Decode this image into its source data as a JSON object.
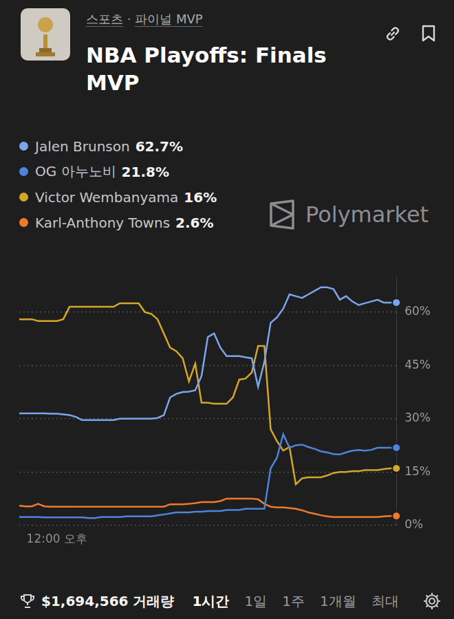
{
  "header": {
    "category": "스포츠",
    "separator": "·",
    "subcategory": "파이널 MVP",
    "title": "NBA Playoffs: Finals MVP"
  },
  "watermark": "Polymarket",
  "chart_data": {
    "type": "line",
    "categories": [
      null,
      null,
      null,
      null,
      null,
      null,
      "12:00 오후",
      null,
      null,
      null,
      null,
      null,
      null,
      null,
      null,
      null,
      null,
      null,
      null,
      null,
      null,
      null,
      null,
      null,
      null,
      null,
      null,
      null,
      null,
      null,
      null,
      null,
      null,
      null,
      null,
      null,
      null,
      null,
      null,
      null,
      null,
      null,
      null,
      null,
      null,
      null,
      null,
      null,
      null,
      null,
      null,
      null,
      null,
      null,
      null,
      null,
      null,
      null,
      null,
      null,
      null
    ],
    "series": [
      {
        "name": "Jalen Brunson",
        "color": "#7ba6ee",
        "current_label": "62.7%",
        "values": [
          31.5,
          31.5,
          31.5,
          31.5,
          31.5,
          31.4,
          31.4,
          31.2,
          31,
          30.5,
          29.6,
          29.6,
          29.6,
          29.6,
          29.6,
          29.6,
          30,
          30,
          30,
          30,
          30,
          30,
          30.2,
          31,
          36,
          37,
          37.5,
          37.6,
          38,
          42,
          53,
          54,
          50,
          47.6,
          47.6,
          47.6,
          47.3,
          47,
          39,
          46,
          57,
          58.5,
          61,
          65,
          64.5,
          64,
          65,
          66,
          67,
          67,
          66.5,
          63.5,
          64.5,
          63,
          62,
          62.5,
          63,
          63.5,
          62.7,
          62.7,
          62.7
        ]
      },
      {
        "name": "OG 아누노비",
        "color": "#4d84dc",
        "current_label": "21.8%",
        "values": [
          2.3,
          2.3,
          2.3,
          2.3,
          2.2,
          2.2,
          2.2,
          2.2,
          2.2,
          2.2,
          2.2,
          2,
          2,
          2.3,
          2.3,
          2.3,
          2.3,
          2.5,
          2.5,
          2.5,
          2.5,
          2.5,
          2.8,
          3,
          3.3,
          3.6,
          3.6,
          3.6,
          3.8,
          3.8,
          4,
          4,
          4,
          4.3,
          4.3,
          4.3,
          4.6,
          4.6,
          4.6,
          4.6,
          16,
          19,
          25.6,
          21.8,
          22.5,
          22.7,
          22,
          21.5,
          20.8,
          20.5,
          20,
          19.9,
          20.5,
          21,
          21.2,
          21,
          21.2,
          21.8,
          21.8,
          21.8,
          21.8
        ]
      },
      {
        "name": "Victor Wembanyama",
        "color": "#d4a62a",
        "current_label": "16%",
        "values": [
          58,
          58,
          58,
          57.5,
          57.5,
          57.5,
          57.5,
          58,
          61.5,
          61.5,
          61.5,
          61.5,
          61.5,
          61.5,
          61.5,
          61.5,
          62.5,
          62.5,
          62.5,
          62.5,
          60,
          59.5,
          58,
          54,
          50,
          49,
          47,
          40.5,
          45.5,
          34.5,
          34.5,
          34.2,
          34.2,
          34.2,
          36,
          41,
          41.3,
          43,
          50.5,
          50.5,
          27,
          23.7,
          21,
          22,
          11.5,
          13.2,
          13.5,
          13.5,
          13.5,
          14,
          14.7,
          15,
          15,
          15.2,
          15.2,
          15.5,
          15.5,
          15.5,
          15.8,
          16,
          16
        ]
      },
      {
        "name": "Karl-Anthony Towns",
        "color": "#f07a2c",
        "current_label": "2.6%",
        "values": [
          5.5,
          5.3,
          5.3,
          6,
          5.3,
          5.2,
          5.2,
          5.2,
          5.2,
          5.2,
          5.2,
          5.2,
          5.2,
          5.2,
          5.2,
          5.2,
          5.2,
          5.2,
          5.2,
          5.2,
          5.2,
          5.2,
          5.2,
          5.2,
          5.9,
          5.9,
          5.9,
          6,
          6.2,
          6.5,
          6.5,
          6.5,
          6.8,
          7.5,
          7.5,
          7.5,
          7.5,
          7.5,
          7.3,
          6,
          5.2,
          5,
          5,
          4.8,
          4.6,
          4.2,
          3.6,
          3.2,
          2.8,
          2.5,
          2.3,
          2.3,
          2.3,
          2.3,
          2.3,
          2.3,
          2.3,
          2.3,
          2.5,
          2.6,
          2.6
        ]
      }
    ],
    "ylim": [
      0,
      70
    ],
    "yticks": [
      {
        "value": 0,
        "label": "0%"
      },
      {
        "value": 15,
        "label": "15%"
      },
      {
        "value": 30,
        "label": "30%"
      },
      {
        "value": 45,
        "label": "45%"
      },
      {
        "value": 60,
        "label": "60%"
      }
    ],
    "grid": true,
    "legend": "top-left"
  },
  "footer": {
    "volume": "$1,694,566",
    "volume_label": "거래량",
    "tabs": [
      "1시간",
      "1일",
      "1주",
      "1개월",
      "최대"
    ],
    "selected_tab": "1시간"
  }
}
